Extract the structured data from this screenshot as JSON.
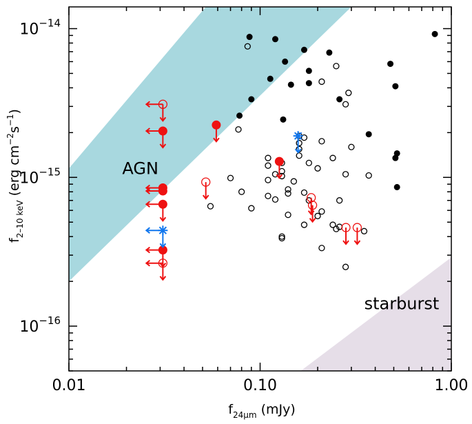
{
  "chart_data": {
    "type": "scatter",
    "xscale": "log",
    "yscale": "log",
    "xlim": [
      0.01,
      1.0
    ],
    "ylim": [
      5e-17,
      1.4e-14
    ],
    "xlabel": {
      "main": "f",
      "sub": "24μm",
      "rest": " (mJy)"
    },
    "ylabel": {
      "main": "f",
      "sub": "2–10 keV",
      "rest": " (erg cm",
      "sup1": "−2",
      "mid": "s",
      "sup2": "−1",
      "end": ")"
    },
    "xticks": [
      {
        "value": 0.01,
        "label": "0.01"
      },
      {
        "value": 0.1,
        "label": "0.10"
      },
      {
        "value": 1.0,
        "label": "1.00"
      }
    ],
    "yticks": [
      {
        "value": 1e-14,
        "base": "10",
        "exp": "−14"
      },
      {
        "value": 1e-15,
        "base": "10",
        "exp": "−15"
      },
      {
        "value": 1e-16,
        "base": "10",
        "exp": "−16"
      }
    ],
    "regions": [
      {
        "name": "AGN",
        "label": "AGN",
        "color": "#a8d8df",
        "lower_edge": [
          [
            0.01,
            2e-16
          ],
          [
            0.3,
            1.4e-14
          ]
        ],
        "upper_edge": [
          [
            0.01,
            1.15e-15
          ],
          [
            0.052,
            1.4e-14
          ]
        ],
        "label_at": [
          0.019,
          1.05e-15
        ]
      },
      {
        "name": "starburst",
        "label": "starburst",
        "color": "#e6dee8",
        "edge": [
          [
            0.163,
            5e-17
          ],
          [
            1.0,
            2.9e-16
          ]
        ],
        "label_at": [
          0.55,
          1.3e-16
        ]
      }
    ],
    "series": [
      {
        "name": "black filled",
        "color": "#000000",
        "marker": "filled",
        "points": [
          [
            0.088,
            8.8e-15
          ],
          [
            0.12,
            8.5e-15
          ],
          [
            0.17,
            7.2e-15
          ],
          [
            0.23,
            6.9e-15
          ],
          [
            0.82,
            9.2e-15
          ],
          [
            0.135,
            6e-15
          ],
          [
            0.18,
            5.2e-15
          ],
          [
            0.48,
            5.8e-15
          ],
          [
            0.113,
            4.6e-15
          ],
          [
            0.145,
            4.2e-15
          ],
          [
            0.18,
            4.3e-15
          ],
          [
            0.51,
            4.1e-15
          ],
          [
            0.09,
            3.35e-15
          ],
          [
            0.26,
            3.35e-15
          ],
          [
            0.078,
            2.6e-15
          ],
          [
            0.132,
            2.45e-15
          ],
          [
            0.37,
            1.95e-15
          ],
          [
            0.52,
            1.45e-15
          ],
          [
            0.51,
            1.35e-15
          ],
          [
            0.52,
            8.6e-16
          ]
        ]
      },
      {
        "name": "black open",
        "color": "#000000",
        "marker": "open",
        "points": [
          [
            0.086,
            7.6e-15
          ],
          [
            0.25,
            5.6e-15
          ],
          [
            0.21,
            4.4e-15
          ],
          [
            0.29,
            3.7e-15
          ],
          [
            0.28,
            3.1e-15
          ],
          [
            0.077,
            2.1e-15
          ],
          [
            0.16,
            1.9e-15
          ],
          [
            0.17,
            1.85e-15
          ],
          [
            0.16,
            1.7e-15
          ],
          [
            0.21,
            1.75e-15
          ],
          [
            0.3,
            1.6e-15
          ],
          [
            0.16,
            1.55e-15
          ],
          [
            0.16,
            1.4e-15
          ],
          [
            0.24,
            1.35e-15
          ],
          [
            0.11,
            1.35e-15
          ],
          [
            0.18,
            1.25e-15
          ],
          [
            0.11,
            1.2e-15
          ],
          [
            0.13,
            1.25e-15
          ],
          [
            0.2,
            1.15e-15
          ],
          [
            0.13,
            1.1e-15
          ],
          [
            0.12,
            1.05e-15
          ],
          [
            0.28,
            1.05e-15
          ],
          [
            0.37,
            1.03e-15
          ],
          [
            0.13,
            1.02e-15
          ],
          [
            0.07,
            9.9e-16
          ],
          [
            0.11,
            9.6e-16
          ],
          [
            0.15,
            9.4e-16
          ],
          [
            0.14,
            8.3e-16
          ],
          [
            0.08,
            8e-16
          ],
          [
            0.14,
            7.8e-16
          ],
          [
            0.17,
            7.9e-16
          ],
          [
            0.11,
            7.5e-16
          ],
          [
            0.12,
            7.1e-16
          ],
          [
            0.18,
            7e-16
          ],
          [
            0.26,
            7e-16
          ],
          [
            0.09,
            6.2e-16
          ],
          [
            0.21,
            5.9e-16
          ],
          [
            0.14,
            5.6e-16
          ],
          [
            0.2,
            5.5e-16
          ],
          [
            0.17,
            4.8e-16
          ],
          [
            0.24,
            4.8e-16
          ],
          [
            0.26,
            4.65e-16
          ],
          [
            0.25,
            4.5e-16
          ],
          [
            0.35,
            4.35e-16
          ],
          [
            0.13,
            4e-16
          ],
          [
            0.13,
            3.9e-16
          ],
          [
            0.21,
            3.35e-16
          ],
          [
            0.28,
            2.5e-16
          ],
          [
            0.055,
            6.4e-16
          ]
        ]
      },
      {
        "name": "red filled",
        "color": "#ee1111",
        "marker": "filled",
        "points": [
          {
            "x": 0.031,
            "y": 2.05e-15,
            "down": true,
            "left": true
          },
          {
            "x": 0.031,
            "y": 8.5e-16,
            "down": false,
            "left": true
          },
          {
            "x": 0.031,
            "y": 8.1e-16,
            "down": false,
            "left": true
          },
          {
            "x": 0.031,
            "y": 6.6e-16,
            "down": true,
            "left": true
          },
          {
            "x": 0.031,
            "y": 3.25e-16,
            "down": true,
            "left": true
          },
          {
            "x": 0.059,
            "y": 2.25e-15,
            "down": true,
            "left": false
          },
          {
            "x": 0.126,
            "y": 1.28e-15,
            "down": true,
            "left": false
          }
        ]
      },
      {
        "name": "red open",
        "color": "#ee1111",
        "marker": "open",
        "points": [
          {
            "x": 0.031,
            "y": 3.1e-15,
            "down": true,
            "left": true
          },
          {
            "x": 0.031,
            "y": 2.65e-16,
            "down": true,
            "left": true
          },
          {
            "x": 0.052,
            "y": 9.3e-16,
            "down": true,
            "left": false
          },
          {
            "x": 0.185,
            "y": 7.3e-16,
            "down": true,
            "left": false
          },
          {
            "x": 0.188,
            "y": 6.5e-16,
            "down": true,
            "left": false
          },
          {
            "x": 0.281,
            "y": 4.6e-16,
            "down": true,
            "left": false
          },
          {
            "x": 0.322,
            "y": 4.6e-16,
            "down": true,
            "left": false
          }
        ]
      },
      {
        "name": "blue star",
        "color": "#1177ee",
        "marker": "star",
        "points": [
          {
            "x": 0.031,
            "y": 4.4e-16,
            "down": true,
            "left": true
          },
          {
            "x": 0.158,
            "y": 1.9e-15,
            "down": true,
            "left": false
          }
        ]
      }
    ]
  }
}
